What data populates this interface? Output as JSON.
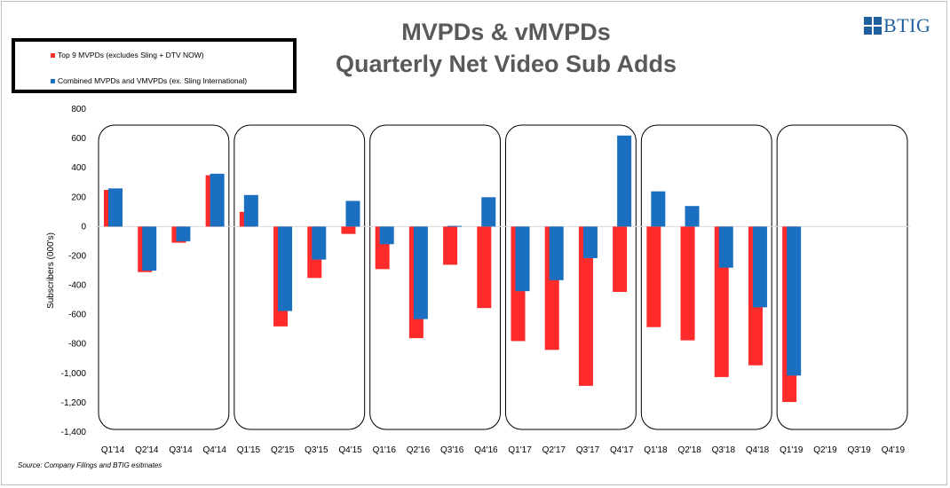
{
  "title_lines": [
    "MVPDs & vMVPDs",
    "Quarterly Net Video Sub Adds"
  ],
  "legend": [
    {
      "label": "Top 9 MVPDs (excludes Sling + DTV NOW)",
      "color": "#ff2b2b"
    },
    {
      "label": "Combined MVPDs and VMVPDs (ex. Sling International)",
      "color": "#1b6fc0"
    }
  ],
  "logo_text": "BTIG",
  "source": "Source: Company Filings and BTIG esitmates",
  "chart_data": {
    "type": "bar",
    "title": "MVPDs & vMVPDs Quarterly Net Video Sub Adds",
    "xlabel": "",
    "ylabel": "Subscribers (000's)",
    "ylim": [
      -1400,
      800
    ],
    "y_ticks": [
      800,
      600,
      400,
      200,
      0,
      -200,
      -400,
      -600,
      -800,
      -1000,
      -1200,
      -1400
    ],
    "y_tick_labels": [
      "800",
      "600",
      "400",
      "200",
      "0",
      "-200",
      "-400",
      "-600",
      "-800",
      "-1,000",
      "-1,200",
      "-1,400"
    ],
    "grid": false,
    "legend_position": "top-left",
    "categories": [
      "Q1'14",
      "Q2'14",
      "Q3'14",
      "Q4'14",
      "Q1'15",
      "Q2'15",
      "Q3'15",
      "Q4'15",
      "Q1'16",
      "Q2'16",
      "Q3'16",
      "Q4'16",
      "Q1'17",
      "Q2'17",
      "Q3'17",
      "Q4'17",
      "Q1'18",
      "Q2'18",
      "Q3'18",
      "Q4'18",
      "Q1'19",
      "Q2'19",
      "Q3'19",
      "Q4'19"
    ],
    "series": [
      {
        "name": "Top 9 MVPDs (excludes Sling + DTV NOW)",
        "color": "#ff2b2b",
        "values": [
          250,
          -310,
          -110,
          350,
          100,
          -680,
          -350,
          -50,
          -290,
          -760,
          -260,
          -555,
          -780,
          -840,
          -1085,
          -445,
          -685,
          -775,
          -1025,
          -945,
          -1195,
          null,
          null,
          null
        ]
      },
      {
        "name": "Combined MVPDs and VMVPDs (ex. Sling International)",
        "color": "#1b6fc0",
        "values": [
          260,
          -300,
          -100,
          360,
          215,
          -575,
          -225,
          175,
          -120,
          -630,
          5,
          200,
          -440,
          -365,
          -215,
          620,
          240,
          140,
          -280,
          -550,
          -1015,
          null,
          null,
          null
        ]
      }
    ],
    "year_groups": 6,
    "quarters_per_group": 4
  }
}
